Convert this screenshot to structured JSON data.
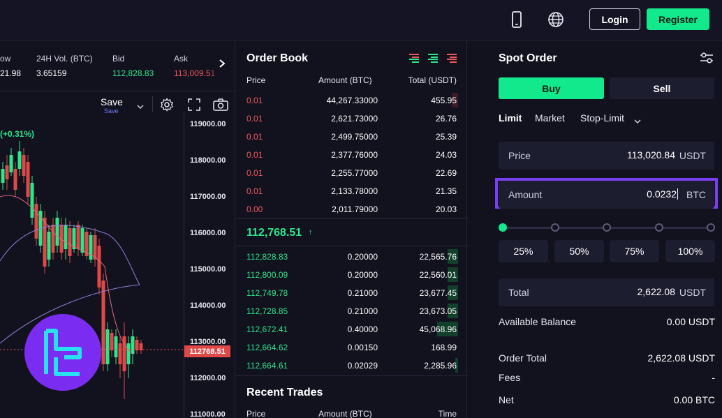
{
  "header": {
    "login_label": "Login",
    "register_label": "Register"
  },
  "ticker": {
    "cols": [
      {
        "label": "ow",
        "value": "21.98"
      },
      {
        "label": "24H Vol. (BTC)",
        "value": "3.65159"
      },
      {
        "label": "Bid",
        "value": "112,828.83"
      },
      {
        "label": "Ask",
        "value": "113,009.51"
      }
    ]
  },
  "chart": {
    "save_label": "Save",
    "save_sub": "Save",
    "change_label": "(+0.31%)",
    "price_ticks": [
      "119000.00",
      "118000.00",
      "117000.00",
      "116000.00",
      "115000.00",
      "114000.00",
      "113000.00",
      "112000.00",
      "111000.00"
    ],
    "current_price": "112768.51"
  },
  "order_book": {
    "title": "Order Book",
    "headers": {
      "price": "Price",
      "amount": "Amount (BTC)",
      "total": "Total (USDT)"
    },
    "asks": [
      {
        "price": "0.01",
        "amount": "44,267.33000",
        "total": "455.95",
        "depth": 0.03
      },
      {
        "price": "0.01",
        "amount": "2,621.73000",
        "total": "26.76",
        "depth": 0.0
      },
      {
        "price": "0.01",
        "amount": "2,499.75000",
        "total": "25.39",
        "depth": 0.0
      },
      {
        "price": "0.01",
        "amount": "2,377.76000",
        "total": "24.03",
        "depth": 0.0
      },
      {
        "price": "0.01",
        "amount": "2,255.77000",
        "total": "22.69",
        "depth": 0.0
      },
      {
        "price": "0.01",
        "amount": "2,133.78000",
        "total": "21.35",
        "depth": 0.0
      },
      {
        "price": "0.00",
        "amount": "2,011.79000",
        "total": "20.03",
        "depth": 0.0
      }
    ],
    "last_price": "112,768.51",
    "last_arrow": "↑",
    "bids": [
      {
        "price": "112,828.83",
        "amount": "0.20000",
        "total": "22,565.76",
        "depth": 0.05
      },
      {
        "price": "112,800.09",
        "amount": "0.20000",
        "total": "22,560.01",
        "depth": 0.05
      },
      {
        "price": "112,749.78",
        "amount": "0.21000",
        "total": "23,677.45",
        "depth": 0.05
      },
      {
        "price": "112,728.85",
        "amount": "0.21000",
        "total": "23,673.05",
        "depth": 0.05
      },
      {
        "price": "112,672.41",
        "amount": "0.40000",
        "total": "45,068.96",
        "depth": 0.1
      },
      {
        "price": "112,664.62",
        "amount": "0.00150",
        "total": "168.99",
        "depth": 0.0
      },
      {
        "price": "112,664.61",
        "amount": "0.02029",
        "total": "2,285.96",
        "depth": 0.01
      }
    ],
    "recent_title": "Recent Trades",
    "recent_headers": {
      "price": "Price",
      "amount": "Amount (BTC)",
      "time": "Time"
    }
  },
  "spot_order": {
    "title": "Spot Order",
    "buy_label": "Buy",
    "sell_label": "Sell",
    "tabs": [
      "Limit",
      "Market",
      "Stop-Limit"
    ],
    "price": {
      "label": "Price",
      "value": "113,020.84",
      "unit": "USDT"
    },
    "amount": {
      "label": "Amount",
      "value": "0.0232",
      "unit": "BTC"
    },
    "slider_level": 0,
    "pct_buttons": [
      "25%",
      "50%",
      "75%",
      "100%"
    ],
    "total": {
      "label": "Total",
      "value": "2,622.08",
      "unit": "USDT"
    },
    "available_label": "Available Balance",
    "available_value": "0.00 USDT",
    "order_total_label": "Order Total",
    "order_total_value": "2,622.08 USDT",
    "fees_label": "Fees",
    "fees_value": "-",
    "net_label": "Net",
    "net_value": "0.00 BTC"
  },
  "colors": {
    "accent_green": "#12e88c",
    "ask_red": "#f0575b",
    "bid_green": "#2ee58a",
    "highlight_border": "#7b3ff2",
    "logo_bg": "#7a2cf0"
  }
}
